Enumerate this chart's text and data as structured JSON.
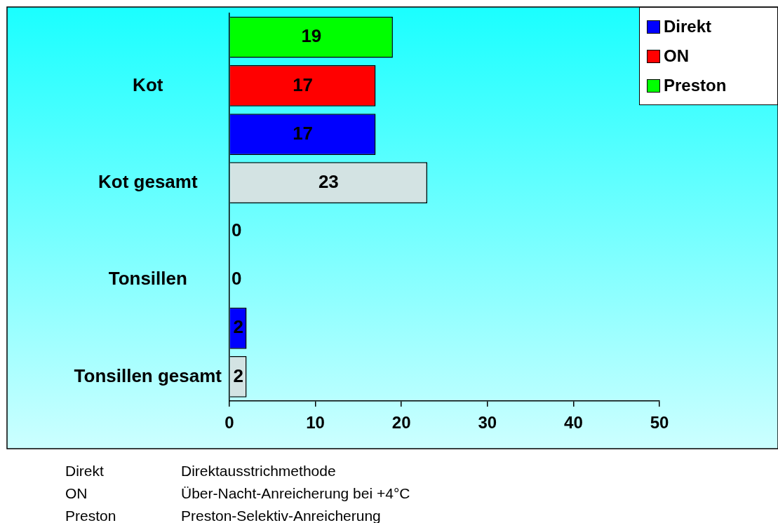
{
  "chart_data": {
    "type": "bar",
    "orientation": "horizontal",
    "categories": [
      null,
      "Kot",
      null,
      "Kot gesamt",
      null,
      "Tonsillen",
      null,
      "Tonsillen gesamt"
    ],
    "series": [
      {
        "name": "Direkt",
        "color": "#0000ff",
        "values": [
          null,
          null,
          17,
          null,
          null,
          null,
          2,
          null
        ]
      },
      {
        "name": "ON",
        "color": "#ff0000",
        "values": [
          null,
          17,
          null,
          null,
          null,
          0,
          null,
          null
        ]
      },
      {
        "name": "Preston",
        "color": "#00ff00",
        "values": [
          19,
          null,
          null,
          null,
          0,
          null,
          null,
          null
        ]
      },
      {
        "color": "#d3e3e3",
        "values": [
          null,
          null,
          null,
          23,
          null,
          null,
          null,
          2
        ]
      }
    ],
    "xlim": [
      0,
      50
    ],
    "xticks": [
      0,
      10,
      20,
      30,
      40,
      50
    ],
    "grid": false,
    "legend": "top right",
    "data_labels": true,
    "annotations": [
      "Direkt",
      "Direktausstrichmethode",
      "ON",
      "Über-Nacht-Anreicherung bei +4°C",
      "Preston",
      "Preston-Selektiv-Anreicherung"
    ]
  }
}
